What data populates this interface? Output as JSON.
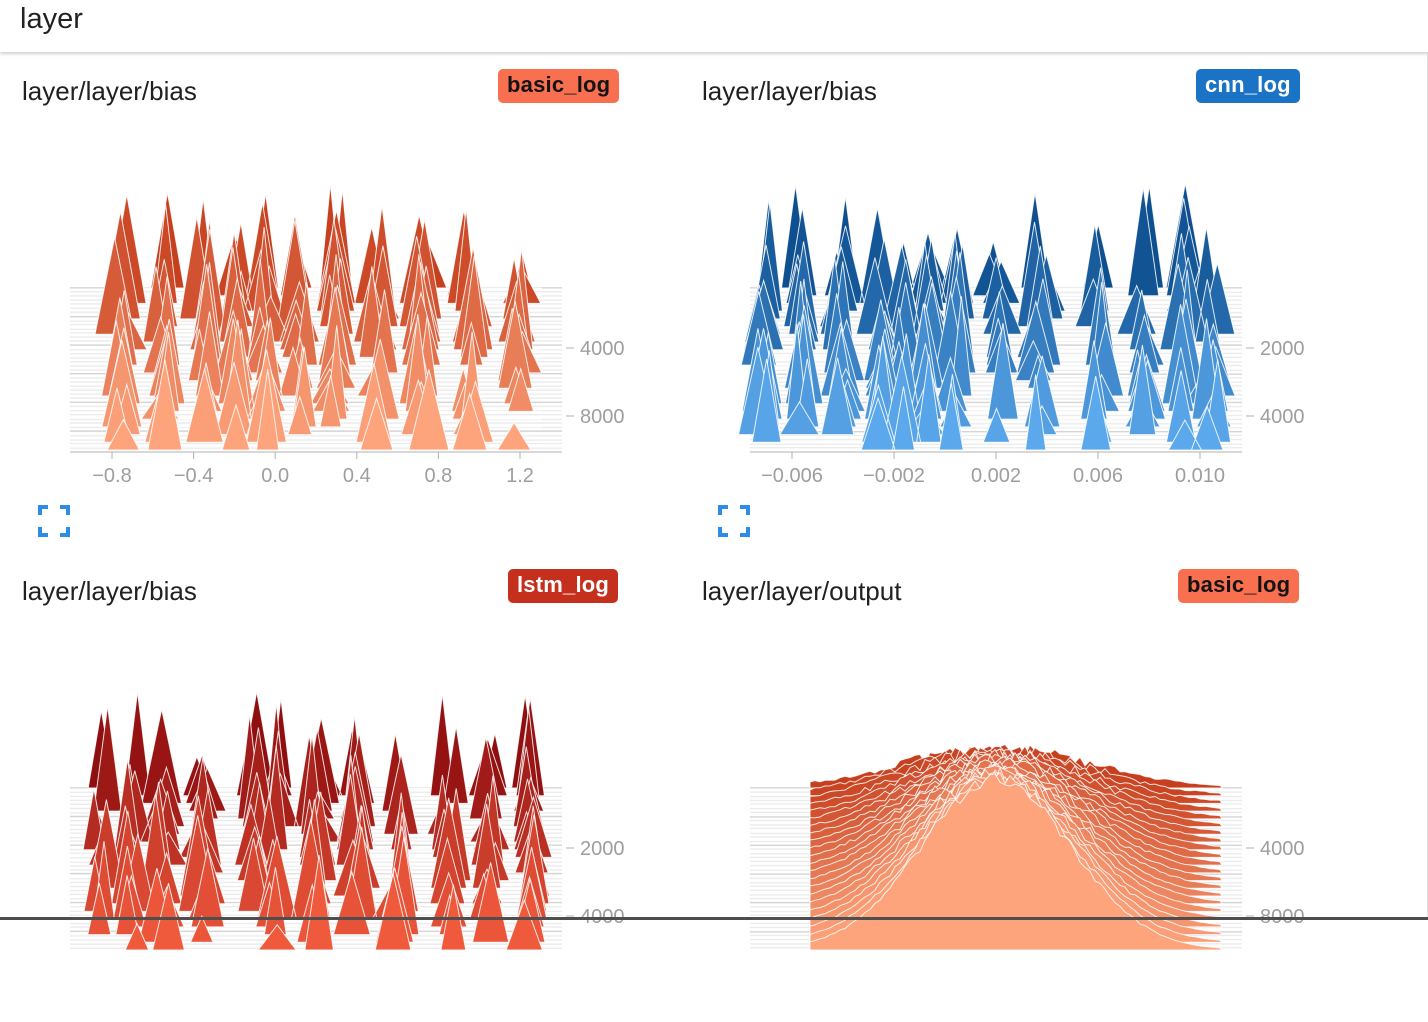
{
  "header": {
    "title": "layer"
  },
  "cards": [
    {
      "title": "layer/layer/bias",
      "run": {
        "label": "basic_log",
        "color": "#f8704f",
        "text_dark": true
      },
      "palette": {
        "back": "#c63f1e",
        "front": "#fda47c"
      },
      "chart_data": {
        "type": "histogram-offset",
        "x_ticks": [
          "−0.8",
          "−0.4",
          "0.0",
          "0.4",
          "0.8",
          "1.2"
        ],
        "x_range": [
          -1.0,
          1.4
        ],
        "y_ticks": [
          "4000",
          "8000"
        ],
        "step_range": [
          0,
          10000
        ],
        "mode": "spiky",
        "peaks": [
          -0.75,
          -0.55,
          -0.35,
          -0.18,
          -0.05,
          0.12,
          0.3,
          0.5,
          0.72,
          0.95,
          1.18
        ]
      }
    },
    {
      "title": "layer/layer/bias",
      "run": {
        "label": "cnn_log",
        "color": "#1a73c4",
        "text_dark": false
      },
      "palette": {
        "back": "#0d4f8f",
        "front": "#5ba8ec"
      },
      "chart_data": {
        "type": "histogram-offset",
        "x_ticks": [
          "−0.006",
          "−0.002",
          "0.002",
          "0.006",
          "0.010"
        ],
        "x_range": [
          -0.008,
          0.011
        ],
        "y_ticks": [
          "2000",
          "4000"
        ],
        "step_range": [
          0,
          5000
        ],
        "mode": "spiky",
        "peaks": [
          -0.0075,
          -0.006,
          -0.0045,
          -0.003,
          -0.0022,
          -0.0012,
          0.0,
          0.0015,
          0.0032,
          0.0055,
          0.0072,
          0.0088,
          0.0098
        ]
      }
    },
    {
      "title": "layer/layer/bias",
      "run": {
        "label": "lstm_log",
        "color": "#c5301e",
        "text_dark": false
      },
      "palette": {
        "back": "#8f0e10",
        "front": "#f05a3c"
      },
      "chart_data": {
        "type": "histogram-offset",
        "x_ticks": [],
        "x_range": [
          -1.0,
          1.4
        ],
        "y_ticks": [
          "2000",
          "4000"
        ],
        "step_range": [
          0,
          5000
        ],
        "mode": "spiky",
        "peaks": [
          -0.85,
          -0.7,
          -0.55,
          -0.35,
          -0.1,
          0.0,
          0.2,
          0.4,
          0.6,
          0.85,
          1.05,
          1.25
        ]
      }
    },
    {
      "title": "layer/layer/output",
      "run": {
        "label": "basic_log",
        "color": "#f8704f",
        "text_dark": true
      },
      "palette": {
        "back": "#c63f1e",
        "front": "#fda47c"
      },
      "chart_data": {
        "type": "histogram-offset",
        "x_ticks": [],
        "x_range": [
          -1.0,
          1.0
        ],
        "y_ticks": [
          "4000",
          "8000"
        ],
        "step_range": [
          0,
          10000
        ],
        "mode": "bell",
        "peaks": [
          0.0
        ]
      }
    }
  ]
}
